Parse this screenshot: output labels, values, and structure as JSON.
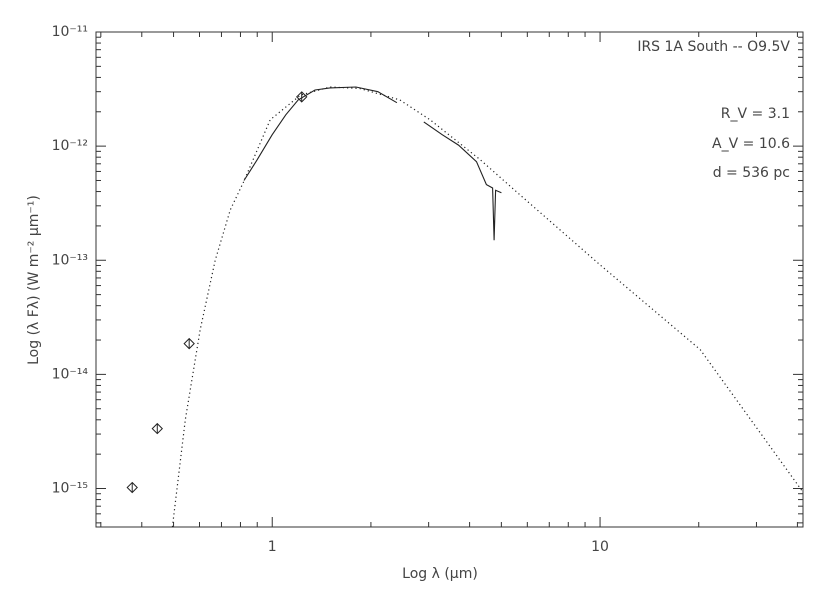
{
  "chart_data": {
    "type": "line",
    "xlabel": "Log λ (μm)",
    "ylabel": "Log (λ Fλ) (W m⁻² μm⁻¹)",
    "annotations": [
      "IRS 1A South -- O9.5V",
      "R_V = 3.1",
      "A_V = 10.6",
      "d = 536 pc"
    ],
    "xscale": "log",
    "yscale": "log",
    "xlim": [
      0.29,
      41.6
    ],
    "ylim": [
      4.6e-16,
      1e-11
    ],
    "xticks": [
      1,
      10
    ],
    "xminorticks": [
      0.3,
      0.4,
      0.5,
      0.6,
      0.7,
      0.8,
      0.9,
      2,
      3,
      4,
      5,
      6,
      7,
      8,
      9,
      20,
      30,
      40
    ],
    "yticks": [
      {
        "value": 1e-15,
        "label": "10⁻¹⁵"
      },
      {
        "value": 1e-14,
        "label": "10⁻¹⁴"
      },
      {
        "value": 1e-13,
        "label": "10⁻¹³"
      },
      {
        "value": 1e-12,
        "label": "10⁻¹²"
      },
      {
        "value": 1e-11,
        "label": "10⁻¹¹"
      }
    ],
    "yminorticks": [
      5e-16,
      6e-16,
      7e-16,
      8e-16,
      9e-16,
      2e-15,
      3e-15,
      4e-15,
      5e-15,
      6e-15,
      7e-15,
      8e-15,
      9e-15,
      2e-14,
      3e-14,
      4e-14,
      5e-14,
      6e-14,
      7e-14,
      8e-14,
      9e-14,
      2e-13,
      3e-13,
      4e-13,
      5e-13,
      6e-13,
      7e-13,
      8e-13,
      9e-13,
      2e-12,
      3e-12,
      4e-12,
      5e-12,
      6e-12,
      7e-12,
      8e-12,
      9e-12
    ],
    "color": "#222222",
    "series": [
      {
        "mark": "dotted",
        "x": [
          0.496,
          0.543,
          0.603,
          0.67,
          0.745,
          0.816,
          0.986,
          1.22,
          1.5,
          1.85,
          2.45,
          3.03,
          4.31,
          5.7,
          10,
          20.2,
          41.6
        ],
        "values": [
          4.6e-16,
          4e-15,
          2.47e-14,
          1e-13,
          2.77e-13,
          4.8e-13,
          1.7e-12,
          2.8e-12,
          3.3e-12,
          3.2e-12,
          2.54e-12,
          1.7e-12,
          7.6e-13,
          3.74e-13,
          9.1e-14,
          1.65e-14,
          9.3e-16
        ]
      },
      {
        "mark": "solid",
        "x": [
          0.82,
          0.9,
          1.0,
          1.1,
          1.2,
          1.35,
          1.5,
          1.8,
          2.1,
          2.4,
          2.6,
          2.9,
          3.3,
          3.7,
          4.2,
          4.5,
          4.7,
          4.75,
          4.8,
          5.0
        ],
        "values": [
          5e-13,
          7.6e-13,
          1.26e-12,
          1.88e-12,
          2.54e-12,
          3.1e-12,
          3.24e-12,
          3.3e-12,
          3e-12,
          2.4e-12,
          null,
          1.63e-12,
          1.26e-12,
          1.02e-12,
          7.3e-13,
          4.6e-13,
          4.3e-13,
          1.5e-13,
          4.1e-13,
          3.9e-13
        ]
      },
      {
        "mark": "diamond",
        "x": [
          0.374,
          0.446,
          0.558,
          1.23
        ],
        "values": [
          1.02e-15,
          3.35e-15,
          1.86e-14,
          2.7e-12
        ]
      }
    ]
  }
}
